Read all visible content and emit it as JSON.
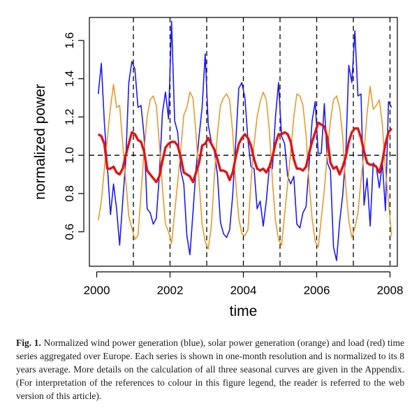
{
  "chart_data": {
    "type": "line",
    "xlabel": "time",
    "ylabel": "normalized power",
    "xlim": [
      1999.8,
      2008.2
    ],
    "ylim": [
      0.42,
      1.72
    ],
    "xticks": [
      2000,
      2002,
      2004,
      2006,
      2008
    ],
    "yticks": [
      0.6,
      0.8,
      1.0,
      1.2,
      1.4,
      1.6
    ],
    "vlines": [
      2001,
      2002,
      2003,
      2004,
      2005,
      2006,
      2007,
      2008
    ],
    "hline": 1.0,
    "x_start": 2000.042,
    "x_step_months": 1,
    "series": [
      {
        "color": "#1a1aff",
        "values": [
          1.32,
          1.48,
          1.17,
          0.94,
          0.69,
          0.85,
          0.72,
          0.53,
          0.76,
          0.97,
          1.38,
          1.49,
          1.45,
          1.25,
          1.26,
          1.1,
          0.72,
          0.7,
          0.64,
          0.67,
          0.9,
          1.22,
          1.33,
          1.19,
          1.7,
          1.18,
          1.12,
          0.92,
          0.85,
          0.58,
          0.48,
          0.7,
          0.93,
          1.1,
          1.25,
          1.53,
          1.16,
          1.07,
          1.02,
          0.9,
          0.65,
          0.59,
          0.57,
          0.61,
          0.79,
          1.07,
          1.35,
          1.38,
          1.3,
          1.08,
          0.94,
          0.93,
          0.72,
          0.76,
          0.63,
          0.76,
          0.94,
          0.93,
          1.2,
          1.38,
          1.1,
          1.06,
          0.89,
          0.85,
          0.89,
          0.64,
          0.62,
          0.7,
          0.73,
          0.95,
          1.18,
          1.28,
          1.01,
          1.01,
          1.27,
          0.96,
          0.92,
          0.52,
          0.45,
          0.65,
          0.79,
          1.0,
          1.47,
          1.38,
          1.65,
          1.31,
          1.32,
          0.74,
          0.88,
          0.63,
          0.96,
          0.94,
          0.83,
          0.96,
          0.71,
          1.28,
          1.25
        ]
      },
      {
        "color": "#e89a2c",
        "values": [
          0.66,
          0.76,
          0.93,
          1.09,
          1.25,
          1.37,
          1.25,
          1.26,
          1.06,
          0.87,
          0.68,
          0.62,
          0.56,
          0.58,
          0.8,
          1.02,
          1.2,
          1.29,
          1.31,
          1.26,
          1.06,
          0.83,
          0.64,
          0.6,
          0.54,
          0.7,
          0.86,
          1.03,
          1.21,
          1.25,
          1.33,
          1.3,
          1.11,
          0.86,
          0.64,
          0.55,
          0.51,
          0.63,
          0.89,
          1.11,
          1.26,
          1.3,
          1.32,
          1.29,
          1.12,
          0.86,
          0.67,
          0.59,
          0.58,
          0.61,
          0.86,
          1.06,
          1.2,
          1.28,
          1.33,
          1.29,
          1.13,
          0.87,
          0.66,
          0.56,
          0.53,
          0.69,
          0.85,
          1.02,
          1.2,
          1.32,
          1.31,
          1.26,
          1.11,
          0.86,
          0.67,
          0.55,
          0.52,
          0.67,
          0.82,
          1.02,
          1.18,
          1.29,
          1.31,
          1.25,
          1.1,
          0.84,
          0.66,
          0.57,
          0.62,
          0.7,
          0.87,
          1.02,
          1.22,
          1.36,
          1.24,
          1.26,
          1.29,
          1.16,
          0.92,
          0.76,
          0.58
        ]
      },
      {
        "color": "#e01414",
        "values": [
          1.11,
          1.1,
          1.06,
          0.93,
          0.93,
          0.94,
          0.91,
          0.9,
          0.93,
          1.0,
          1.06,
          1.12,
          1.11,
          1.08,
          1.07,
          1.02,
          0.92,
          0.9,
          0.88,
          0.86,
          0.89,
          0.97,
          1.04,
          1.06,
          1.07,
          1.07,
          1.05,
          0.99,
          0.91,
          0.9,
          0.89,
          0.86,
          0.91,
          0.96,
          1.05,
          1.06,
          1.09,
          1.06,
          1.03,
          0.98,
          0.92,
          0.92,
          0.91,
          0.87,
          0.91,
          0.99,
          1.06,
          1.09,
          1.11,
          1.09,
          1.05,
          0.98,
          0.93,
          0.92,
          0.93,
          0.91,
          0.94,
          0.99,
          1.06,
          1.11,
          1.11,
          1.12,
          1.11,
          1.07,
          0.98,
          0.93,
          0.93,
          0.92,
          0.94,
          1.01,
          1.07,
          1.12,
          1.17,
          1.16,
          1.15,
          1.09,
          0.96,
          0.93,
          0.94,
          0.9,
          0.94,
          0.99,
          1.07,
          1.12,
          1.14,
          1.14,
          1.09,
          1.02,
          0.96,
          0.95,
          0.95,
          0.94,
          0.91,
          0.97,
          1.06,
          1.12,
          1.14
        ]
      }
    ]
  },
  "caption": {
    "label": "Fig. 1.",
    "text": " Normalized wind power generation (blue), solar power generation (orange) and load (red) time series aggregated over Europe. Each series is shown in one-month resolution and is normalized to its 8 years average. More details on the calculation of all three seasonal curves are given in the Appendix. (For interpretation of the references to colour in this figure legend, the reader is referred to the web version of this article)."
  }
}
